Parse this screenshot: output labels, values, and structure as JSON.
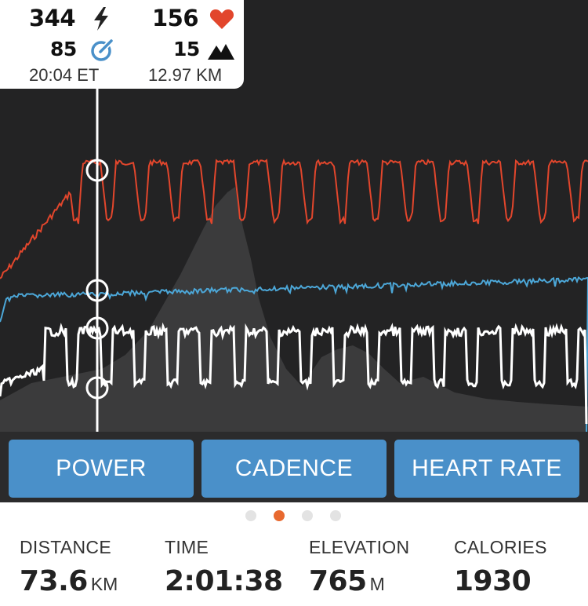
{
  "tooltip": {
    "power": "344",
    "heart_rate": "156",
    "cadence": "85",
    "elevation": "15",
    "elapsed_time": "20:04 ET",
    "distance": "12.97 KM"
  },
  "chart_data": {
    "type": "line",
    "series": [
      {
        "id": "heart_rate",
        "color": "#e2462c",
        "pattern": "intervals"
      },
      {
        "id": "cadence",
        "color": "#4ca7d8",
        "pattern": "steady"
      },
      {
        "id": "power",
        "color": "#ffffff",
        "pattern": "intervals"
      },
      {
        "id": "elevation",
        "color": "#3b3b3c",
        "pattern": "area"
      }
    ],
    "cursor_values": {
      "power": 344,
      "heart_rate": 156,
      "cadence": 85,
      "elevation": 15
    }
  },
  "buttons": {
    "power": "POWER",
    "cadence": "CADENCE",
    "heart_rate": "HEART RATE"
  },
  "pager": {
    "count": 4,
    "active": 1
  },
  "stats": {
    "distance": {
      "label": "DISTANCE",
      "value": "73.6",
      "unit": "KM"
    },
    "time": {
      "label": "TIME",
      "value": "2:01:38"
    },
    "elevation": {
      "label": "ELEVATION",
      "value": "765",
      "unit": "M"
    },
    "calories": {
      "label": "CALORIES",
      "value": "1930"
    }
  },
  "colors": {
    "accent": "#e8692f",
    "button": "#4a90c9",
    "heart": "#e2462c",
    "cadence": "#4ca7d8",
    "chart_bg": "#232324"
  }
}
